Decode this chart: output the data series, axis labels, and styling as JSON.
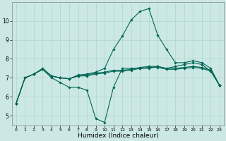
{
  "xlabel": "Humidex (Indice chaleur)",
  "background_color": "#cce8e4",
  "grid_color": "#b0d4ce",
  "line_color": "#006655",
  "xlim": [
    -0.5,
    23.5
  ],
  "ylim": [
    4.5,
    11.0
  ],
  "yticks": [
    5,
    6,
    7,
    8,
    9,
    10
  ],
  "xticks": [
    0,
    1,
    2,
    3,
    4,
    5,
    6,
    7,
    8,
    9,
    10,
    11,
    12,
    13,
    14,
    15,
    16,
    17,
    18,
    19,
    20,
    21,
    22,
    23
  ],
  "line1_x": [
    0,
    1,
    2,
    3,
    4,
    5,
    6,
    7,
    8,
    9,
    10,
    11,
    12,
    13,
    14,
    15,
    16,
    17,
    18,
    19,
    20,
    21,
    22,
    23
  ],
  "line1_y": [
    5.65,
    7.0,
    7.2,
    7.45,
    7.0,
    6.75,
    6.5,
    6.5,
    6.35,
    4.85,
    4.65,
    6.5,
    7.5,
    7.5,
    7.5,
    7.5,
    7.6,
    7.5,
    7.6,
    7.7,
    7.8,
    7.7,
    7.35,
    6.6
  ],
  "line2_x": [
    0,
    1,
    2,
    3,
    4,
    5,
    6,
    7,
    8,
    9,
    10,
    11,
    12,
    13,
    14,
    15,
    16,
    17,
    18,
    19,
    20,
    21,
    22,
    23
  ],
  "line2_y": [
    5.65,
    7.0,
    7.2,
    7.45,
    7.1,
    7.0,
    6.95,
    7.1,
    7.1,
    7.2,
    7.25,
    7.35,
    7.35,
    7.4,
    7.5,
    7.55,
    7.55,
    7.45,
    7.45,
    7.5,
    7.55,
    7.5,
    7.35,
    6.6
  ],
  "line3_x": [
    0,
    1,
    2,
    3,
    4,
    5,
    6,
    7,
    8,
    9,
    10,
    11,
    12,
    13,
    14,
    15,
    16,
    17,
    18,
    19,
    20,
    21,
    22,
    23
  ],
  "line3_y": [
    5.65,
    7.0,
    7.2,
    7.45,
    7.1,
    7.0,
    6.95,
    7.1,
    7.15,
    7.25,
    7.3,
    7.4,
    7.4,
    7.45,
    7.55,
    7.6,
    7.6,
    7.5,
    7.5,
    7.55,
    7.6,
    7.55,
    7.4,
    6.6
  ],
  "line4_x": [
    0,
    1,
    2,
    3,
    4,
    5,
    6,
    7,
    8,
    9,
    10,
    11,
    12,
    13,
    14,
    15,
    16,
    17,
    18,
    19,
    20,
    21,
    22,
    23
  ],
  "line4_y": [
    5.65,
    7.0,
    7.2,
    7.5,
    7.1,
    7.0,
    6.95,
    7.15,
    7.2,
    7.3,
    7.5,
    8.5,
    9.2,
    10.05,
    10.5,
    10.65,
    9.25,
    8.5,
    7.8,
    7.8,
    7.9,
    7.8,
    7.5,
    6.6
  ]
}
